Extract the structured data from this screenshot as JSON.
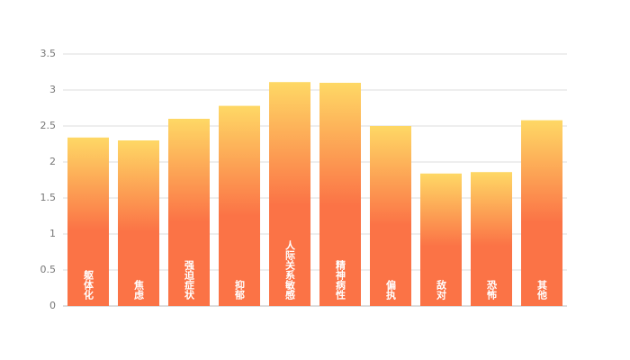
{
  "chart_data": {
    "type": "bar",
    "categories": [
      "躯体化",
      "焦虑",
      "强迫症状",
      "抑郁",
      "人际关系敏感",
      "精神病性",
      "偏执",
      "敌对",
      "恐怖",
      "其他"
    ],
    "values": [
      2.34,
      2.3,
      2.6,
      2.78,
      3.11,
      3.1,
      2.5,
      1.84,
      1.86,
      2.58
    ],
    "color": [
      "#fed865",
      "#fb7346"
    ],
    "ylim": [
      0,
      3.5
    ],
    "yticks": [
      0,
      0.5,
      1,
      1.5,
      2,
      2.5,
      3,
      3.5
    ],
    "grid": true
  }
}
